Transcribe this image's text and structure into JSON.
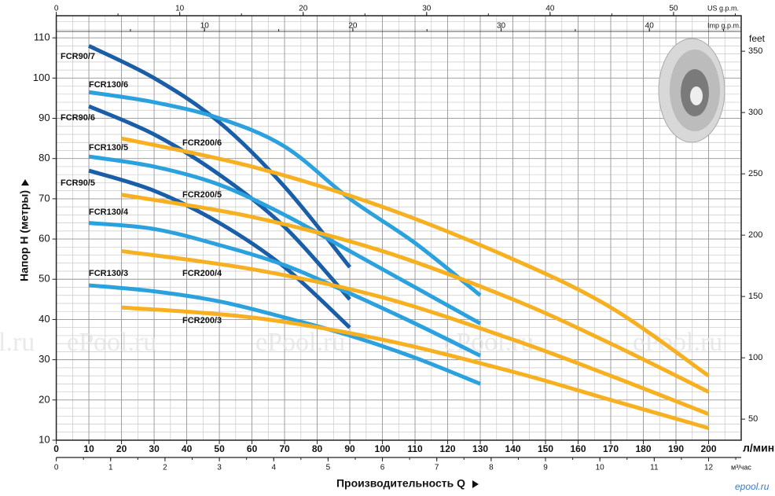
{
  "chart_data": {
    "type": "line",
    "xlabel": "Производительность Q",
    "ylabel": "Напор H (метры)",
    "xunit": "л/мин",
    "xlim": [
      0,
      210
    ],
    "xticks": [
      0,
      10,
      20,
      30,
      40,
      50,
      60,
      70,
      80,
      90,
      100,
      110,
      120,
      130,
      140,
      150,
      160,
      170,
      180,
      190,
      200
    ],
    "ylim": [
      10,
      115.5
    ],
    "yticks": [
      10,
      20,
      30,
      40,
      50,
      60,
      70,
      80,
      90,
      100,
      110
    ],
    "y2label": "feet",
    "y2lim": [
      32.81,
      378.94
    ],
    "y2ticks": [
      50,
      100,
      150,
      200,
      250,
      300,
      350
    ],
    "extra_x_axes": [
      {
        "label": "US g.p.m.",
        "xlim": [
          0,
          55.48
        ],
        "xticks": [
          0,
          10,
          20,
          30,
          40,
          50
        ]
      },
      {
        "label": "Imp g.p.m.",
        "xlim": [
          0,
          46.19
        ],
        "xticks": [
          10,
          20,
          30,
          40
        ]
      },
      {
        "label": "м³/час",
        "xlim": [
          0,
          12.6
        ],
        "xticks": [
          0,
          1,
          2,
          3,
          4,
          5,
          6,
          7,
          8,
          9,
          10,
          11,
          12
        ]
      }
    ],
    "grid": true,
    "watermark": "ePool.ru",
    "footer": "epool.ru",
    "series": [
      {
        "name": "FCR90/7",
        "color": "#1b5ea8",
        "x": [
          10,
          30,
          50,
          70,
          90
        ],
        "values": [
          108,
          100,
          89,
          73,
          53
        ]
      },
      {
        "name": "FCR90/6",
        "color": "#1b5ea8",
        "x": [
          10,
          30,
          50,
          70,
          90
        ],
        "values": [
          93,
          86,
          76,
          63,
          45
        ]
      },
      {
        "name": "FCR90/5",
        "color": "#1b5ea8",
        "x": [
          10,
          30,
          50,
          70,
          90
        ],
        "values": [
          77,
          72,
          64,
          53,
          38
        ]
      },
      {
        "name": "FCR130/6",
        "color": "#2ba1dd",
        "x": [
          10,
          30,
          50,
          70,
          90,
          110,
          130
        ],
        "values": [
          96.5,
          94,
          90,
          83,
          70,
          59,
          46
        ]
      },
      {
        "name": "FCR130/5",
        "color": "#2ba1dd",
        "x": [
          10,
          30,
          50,
          70,
          90,
          110,
          130
        ],
        "values": [
          80.5,
          78,
          73.5,
          66,
          57,
          48,
          39
        ]
      },
      {
        "name": "FCR130/4",
        "color": "#2ba1dd",
        "x": [
          10,
          30,
          50,
          70,
          90,
          110,
          130
        ],
        "values": [
          64,
          62.5,
          58.5,
          53.5,
          46.5,
          39,
          31
        ]
      },
      {
        "name": "FCR130/3",
        "color": "#2ba1dd",
        "x": [
          10,
          30,
          50,
          70,
          90,
          110,
          130
        ],
        "values": [
          48.5,
          47,
          44.5,
          40.5,
          36,
          30.5,
          24
        ]
      },
      {
        "name": "FCR200/6",
        "color": "#f6b020",
        "x": [
          20,
          60,
          100,
          140,
          170,
          200
        ],
        "values": [
          85,
          78,
          68,
          55,
          43,
          26
        ]
      },
      {
        "name": "FCR200/5",
        "color": "#f6b020",
        "x": [
          20,
          60,
          100,
          140,
          170,
          200
        ],
        "values": [
          71,
          65.5,
          57,
          45,
          34,
          22
        ]
      },
      {
        "name": "FCR200/4",
        "color": "#f6b020",
        "x": [
          20,
          60,
          100,
          140,
          170,
          200
        ],
        "values": [
          57,
          52.5,
          45.5,
          35,
          26,
          16.5
        ]
      },
      {
        "name": "FCR200/3",
        "color": "#f6b020",
        "x": [
          20,
          60,
          100,
          140,
          170,
          200
        ],
        "values": [
          43,
          40.5,
          35,
          27,
          20,
          13
        ]
      }
    ]
  }
}
